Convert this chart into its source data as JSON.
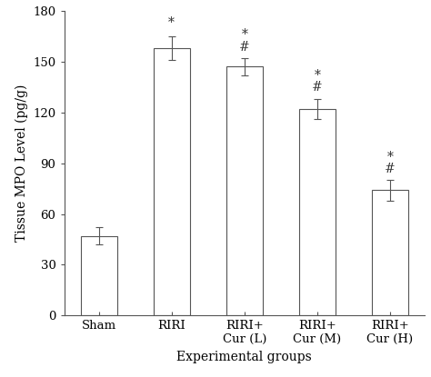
{
  "categories": [
    "Sham",
    "RIRI",
    "RIRI+\nCur (L)",
    "RIRI+\nCur (M)",
    "RIRI+\nCur (H)"
  ],
  "values": [
    47,
    158,
    147,
    122,
    74
  ],
  "errors": [
    5,
    7,
    5,
    6,
    6
  ],
  "annot_star": [
    false,
    true,
    true,
    true,
    true
  ],
  "annot_hash": [
    false,
    false,
    true,
    true,
    true
  ],
  "ylabel": "Tissue MPO Level (pg/g)",
  "xlabel": "Experimental groups",
  "ylim": [
    0,
    180
  ],
  "yticks": [
    0,
    30,
    60,
    90,
    120,
    150,
    180
  ],
  "bar_color": "white",
  "bar_edgecolor": "#555555",
  "bar_width": 0.5,
  "figsize": [
    4.74,
    4.15
  ],
  "dpi": 100,
  "annotation_fontsize": 10,
  "axis_label_fontsize": 10,
  "tick_fontsize": 9.5
}
